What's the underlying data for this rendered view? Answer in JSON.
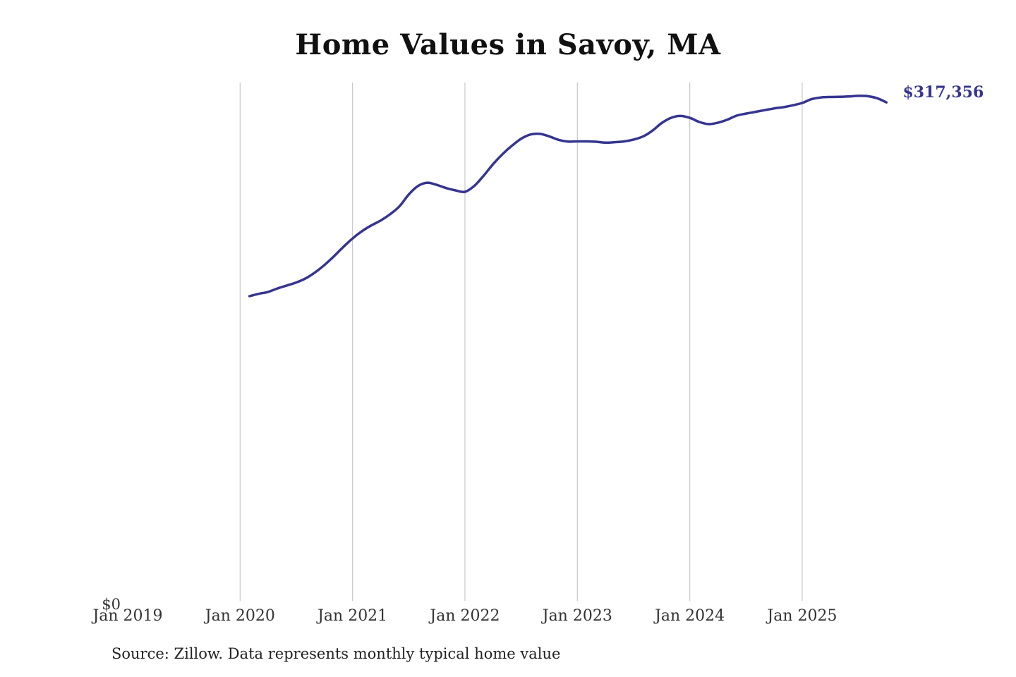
{
  "source_note": "Source: Zillow. Data represents monthly typical home value",
  "chart_data": {
    "type": "line",
    "title": "Home Values in Savoy, MA",
    "xlabel": "",
    "ylabel": "",
    "grid": "vertical",
    "line_color": "#353590",
    "grid_color": "#c8c8c8",
    "x_range": [
      "2019-01",
      "2025-12"
    ],
    "ylim": [
      0,
      330000
    ],
    "x_ticks": [
      "Jan 2019",
      "Jan 2020",
      "Jan 2021",
      "Jan 2022",
      "Jan 2023",
      "Jan 2024",
      "Jan 2025"
    ],
    "y_ticks": [
      "$0"
    ],
    "end_label": "$317,356",
    "series": [
      {
        "x": [
          "2020-02",
          "2020-03",
          "2020-04",
          "2020-05",
          "2020-06",
          "2020-07",
          "2020-08",
          "2020-09",
          "2020-10",
          "2020-11",
          "2020-12",
          "2021-01",
          "2021-02",
          "2021-03",
          "2021-04",
          "2021-05",
          "2021-06",
          "2021-07",
          "2021-08",
          "2021-09",
          "2021-10",
          "2021-11",
          "2021-12",
          "2022-01",
          "2022-02",
          "2022-03",
          "2022-04",
          "2022-05",
          "2022-06",
          "2022-07",
          "2022-08",
          "2022-09",
          "2022-10",
          "2022-11",
          "2022-12",
          "2023-01",
          "2023-02",
          "2023-03",
          "2023-04",
          "2023-05",
          "2023-06",
          "2023-07",
          "2023-08",
          "2023-09",
          "2023-10",
          "2023-11",
          "2023-12",
          "2024-01",
          "2024-02",
          "2024-03",
          "2024-04",
          "2024-05",
          "2024-06",
          "2024-07",
          "2024-08",
          "2024-09",
          "2024-10",
          "2024-11",
          "2024-12",
          "2025-01",
          "2025-02",
          "2025-03",
          "2025-04",
          "2025-05",
          "2025-06",
          "2025-07",
          "2025-08",
          "2025-09",
          "2025-10"
        ],
        "values": [
          194000,
          195500,
          196700,
          198900,
          200800,
          202700,
          205300,
          209100,
          213800,
          219300,
          225200,
          230700,
          235300,
          239000,
          242100,
          246100,
          251100,
          258700,
          264200,
          266200,
          264800,
          262800,
          261300,
          260400,
          264200,
          270700,
          278000,
          284300,
          289700,
          294200,
          296900,
          297300,
          295700,
          293500,
          292400,
          292500,
          292500,
          292300,
          291700,
          292000,
          292500,
          293700,
          295600,
          299300,
          304200,
          307500,
          308700,
          307500,
          304900,
          303500,
          304400,
          306300,
          308900,
          310200,
          311300,
          312400,
          313500,
          314300,
          315500,
          317000,
          319400,
          320500,
          320800,
          320900,
          321100,
          321500,
          321300,
          320000,
          317356
        ]
      }
    ]
  }
}
